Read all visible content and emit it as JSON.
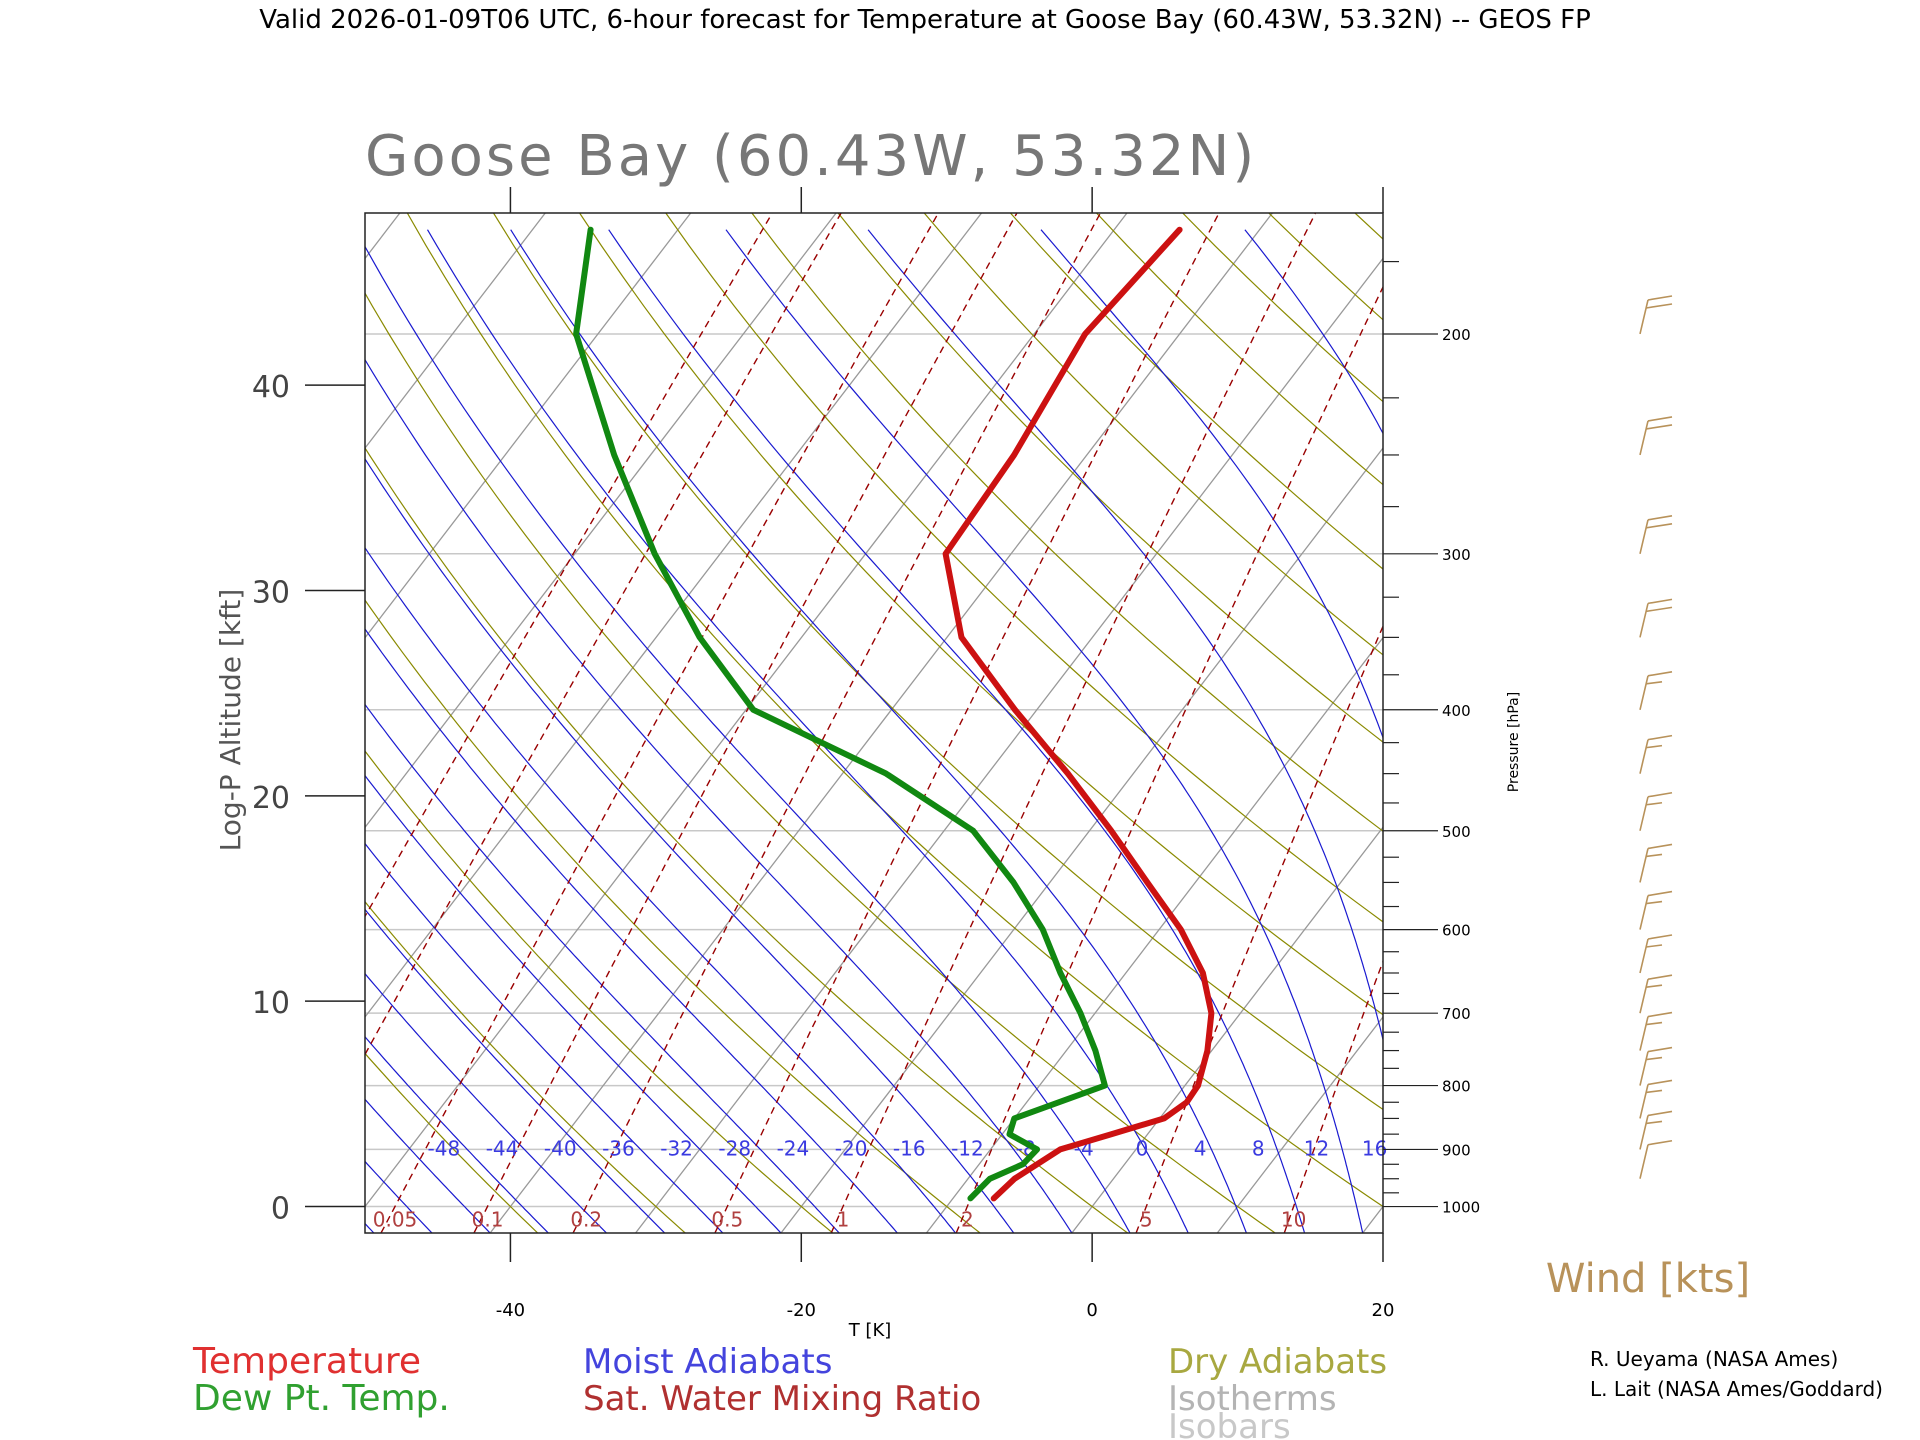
{
  "header": {
    "valid_line": "Valid 2026-01-09T06 UTC, 6-hour forecast for Temperature at Goose Bay (60.43W, 53.32N) -- GEOS FP"
  },
  "chart_data": {
    "type": "line",
    "subtype": "skew-T log-P diagram",
    "title": "Goose Bay (60.43W, 53.32N)",
    "xlabel": "T [K]",
    "ylabel_left": "Log-P Altitude [kft]",
    "ylabel_right": "Pressure [hPa]",
    "x_ticks": [
      "-40",
      "-20",
      "0",
      "20"
    ],
    "y_ticks_left": [
      "0",
      "10",
      "20",
      "30",
      "40"
    ],
    "pressure_ticks": [
      "200",
      "300",
      "400",
      "500",
      "600",
      "700",
      "800",
      "900",
      "1000"
    ],
    "xlim": [
      -50,
      20
    ],
    "ylim_hpa": [
      1050,
      160
    ],
    "skew_deg_per_kft": 1.083,
    "moist_adiabat_labels": [
      "-48",
      "-44",
      "-40",
      "-36",
      "-32",
      "-28",
      "-24",
      "-20",
      "-16",
      "-12",
      "-8",
      "-4",
      "0",
      "4",
      "8",
      "12",
      "16"
    ],
    "mixing_ratio_labels": [
      "0.05",
      "0.1",
      "0.2",
      "0.5",
      "1",
      "2",
      "5",
      "10"
    ],
    "series": [
      {
        "name": "Temperature",
        "color": "#cc1111",
        "points": [
          {
            "p": 985,
            "t": -7.2
          },
          {
            "p": 950,
            "t": -6.8
          },
          {
            "p": 900,
            "t": -5.2
          },
          {
            "p": 875,
            "t": -2.5
          },
          {
            "p": 850,
            "t": 0.3
          },
          {
            "p": 825,
            "t": 1.0
          },
          {
            "p": 800,
            "t": 0.9
          },
          {
            "p": 750,
            "t": -0.3
          },
          {
            "p": 700,
            "t": -2.0
          },
          {
            "p": 650,
            "t": -4.7
          },
          {
            "p": 600,
            "t": -8.5
          },
          {
            "p": 550,
            "t": -13.3
          },
          {
            "p": 500,
            "t": -18.5
          },
          {
            "p": 450,
            "t": -24.5
          },
          {
            "p": 400,
            "t": -31.5
          },
          {
            "p": 350,
            "t": -39.0
          },
          {
            "p": 300,
            "t": -44.5
          },
          {
            "p": 250,
            "t": -45.0
          },
          {
            "p": 200,
            "t": -46.5
          },
          {
            "p": 165,
            "t": -45.5
          }
        ]
      },
      {
        "name": "Dew Pt. Temp.",
        "color": "#118811",
        "points": [
          {
            "p": 985,
            "t": -8.8
          },
          {
            "p": 950,
            "t": -8.5
          },
          {
            "p": 925,
            "t": -7.0
          },
          {
            "p": 900,
            "t": -6.8
          },
          {
            "p": 875,
            "t": -9.5
          },
          {
            "p": 850,
            "t": -10.0
          },
          {
            "p": 800,
            "t": -5.5
          },
          {
            "p": 750,
            "t": -8.0
          },
          {
            "p": 700,
            "t": -11.0
          },
          {
            "p": 650,
            "t": -14.5
          },
          {
            "p": 600,
            "t": -18.0
          },
          {
            "p": 550,
            "t": -22.5
          },
          {
            "p": 500,
            "t": -28.0
          },
          {
            "p": 450,
            "t": -37.0
          },
          {
            "p": 400,
            "t": -49.5
          },
          {
            "p": 350,
            "t": -57.0
          },
          {
            "p": 300,
            "t": -64.5
          },
          {
            "p": 250,
            "t": -72.5
          },
          {
            "p": 200,
            "t": -81.5
          },
          {
            "p": 165,
            "t": -86.0
          }
        ]
      }
    ],
    "wind_barbs": [
      {
        "p": 200,
        "speed_kts": 20
      },
      {
        "p": 250,
        "speed_kts": 20
      },
      {
        "p": 300,
        "speed_kts": 20
      },
      {
        "p": 350,
        "speed_kts": 20
      },
      {
        "p": 400,
        "speed_kts": 15
      },
      {
        "p": 450,
        "speed_kts": 15
      },
      {
        "p": 500,
        "speed_kts": 15
      },
      {
        "p": 550,
        "speed_kts": 15
      },
      {
        "p": 600,
        "speed_kts": 15
      },
      {
        "p": 650,
        "speed_kts": 15
      },
      {
        "p": 700,
        "speed_kts": 15
      },
      {
        "p": 750,
        "speed_kts": 15
      },
      {
        "p": 800,
        "speed_kts": 15
      },
      {
        "p": 850,
        "speed_kts": 15
      },
      {
        "p": 900,
        "speed_kts": 15
      },
      {
        "p": 950,
        "speed_kts": 10
      }
    ],
    "wind_label": "Wind [kts]",
    "legend": [
      {
        "label": "Temperature",
        "color": "#e03030"
      },
      {
        "label": "Dew Pt. Temp.",
        "color": "#30a030"
      },
      {
        "label": "Moist Adiabats",
        "color": "#4444dd"
      },
      {
        "label": "Sat. Water Mixing Ratio",
        "color": "#b03030"
      },
      {
        "label": "Dry Adiabats",
        "color": "#a8a840"
      },
      {
        "label": "Isotherms",
        "color": "#b4b4b4"
      },
      {
        "label": "Isobars",
        "color": "#c8c8c8"
      }
    ],
    "credits": [
      "R. Ueyama (NASA Ames)",
      "L. Lait (NASA Ames/Goddard)"
    ]
  }
}
